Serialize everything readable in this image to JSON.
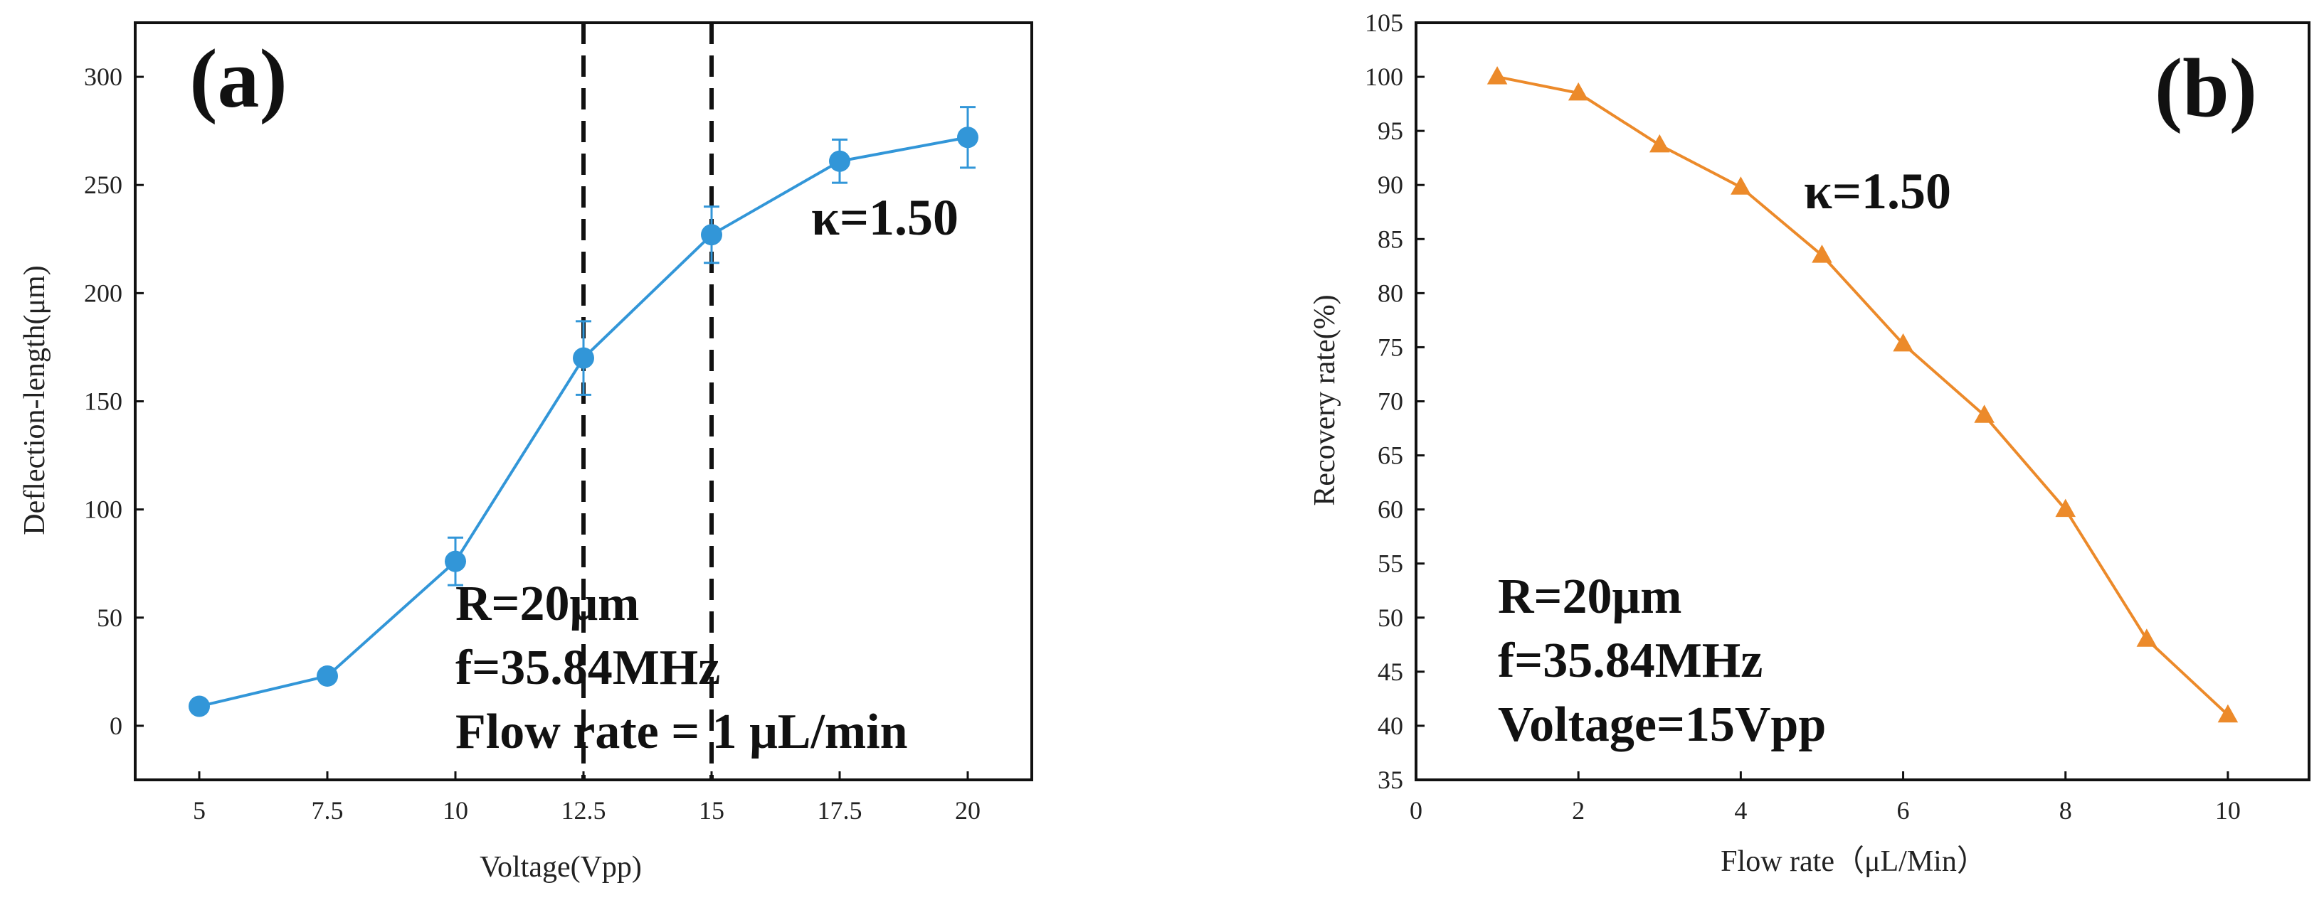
{
  "chart_data": [
    {
      "type": "line",
      "panel_label": "(a)",
      "title": "",
      "xlabel": "Voltage(Vpp)",
      "ylabel": "Deflection-length(μm)",
      "xlim": [
        3.75,
        21.25
      ],
      "ylim": [
        -25,
        325
      ],
      "xticks": [
        5,
        7.5,
        10,
        12.5,
        15,
        17.5,
        20
      ],
      "xtick_labels": [
        "5",
        "7.5",
        "10",
        "12.5",
        "15",
        "17.5",
        "20"
      ],
      "yticks": [
        0,
        50,
        100,
        150,
        200,
        250,
        300
      ],
      "ytick_labels": [
        "0",
        "50",
        "100",
        "150",
        "200",
        "250",
        "300"
      ],
      "color": "#3296d8",
      "marker": "circle",
      "series": [
        {
          "name": "Deflection length",
          "x": [
            5,
            7.5,
            10,
            12.5,
            15,
            17.5,
            20
          ],
          "y": [
            9,
            23,
            76,
            170,
            227,
            261,
            272
          ],
          "error": [
            0,
            0,
            11,
            17,
            13,
            10,
            14
          ]
        }
      ],
      "vlines": [
        12.5,
        15
      ],
      "annotations": {
        "kappa": "κ=1.50",
        "params": [
          "R=20μm",
          "f=35.84MHz",
          "Flow rate = 1 μL/min"
        ]
      }
    },
    {
      "type": "line",
      "panel_label": "(b)",
      "title": "",
      "xlabel": "Flow rate（μL/Min）",
      "ylabel": "Recovery rate(%)",
      "xlim": [
        0,
        11
      ],
      "ylim": [
        35,
        105
      ],
      "xticks": [
        0,
        2,
        4,
        6,
        8,
        10
      ],
      "xtick_labels": [
        "0",
        "2",
        "4",
        "6",
        "8",
        "10"
      ],
      "yticks": [
        35,
        40,
        45,
        50,
        55,
        60,
        65,
        70,
        75,
        80,
        85,
        90,
        95,
        100,
        105
      ],
      "ytick_labels": [
        "35",
        "40",
        "45",
        "50",
        "55",
        "60",
        "65",
        "70",
        "75",
        "80",
        "85",
        "90",
        "95",
        "100",
        "105"
      ],
      "color": "#ec8a2a",
      "marker": "triangle",
      "series": [
        {
          "name": "Recovery rate",
          "x": [
            1,
            2,
            3,
            4,
            5,
            6,
            7,
            8,
            9,
            10
          ],
          "y": [
            100,
            98.5,
            93.7,
            89.8,
            83.5,
            75.3,
            68.7,
            60,
            48,
            41
          ]
        }
      ],
      "annotations": {
        "kappa": "κ=1.50",
        "params": [
          "R=20μm",
          "f=35.84MHz",
          "Voltage=15Vpp"
        ]
      }
    }
  ]
}
